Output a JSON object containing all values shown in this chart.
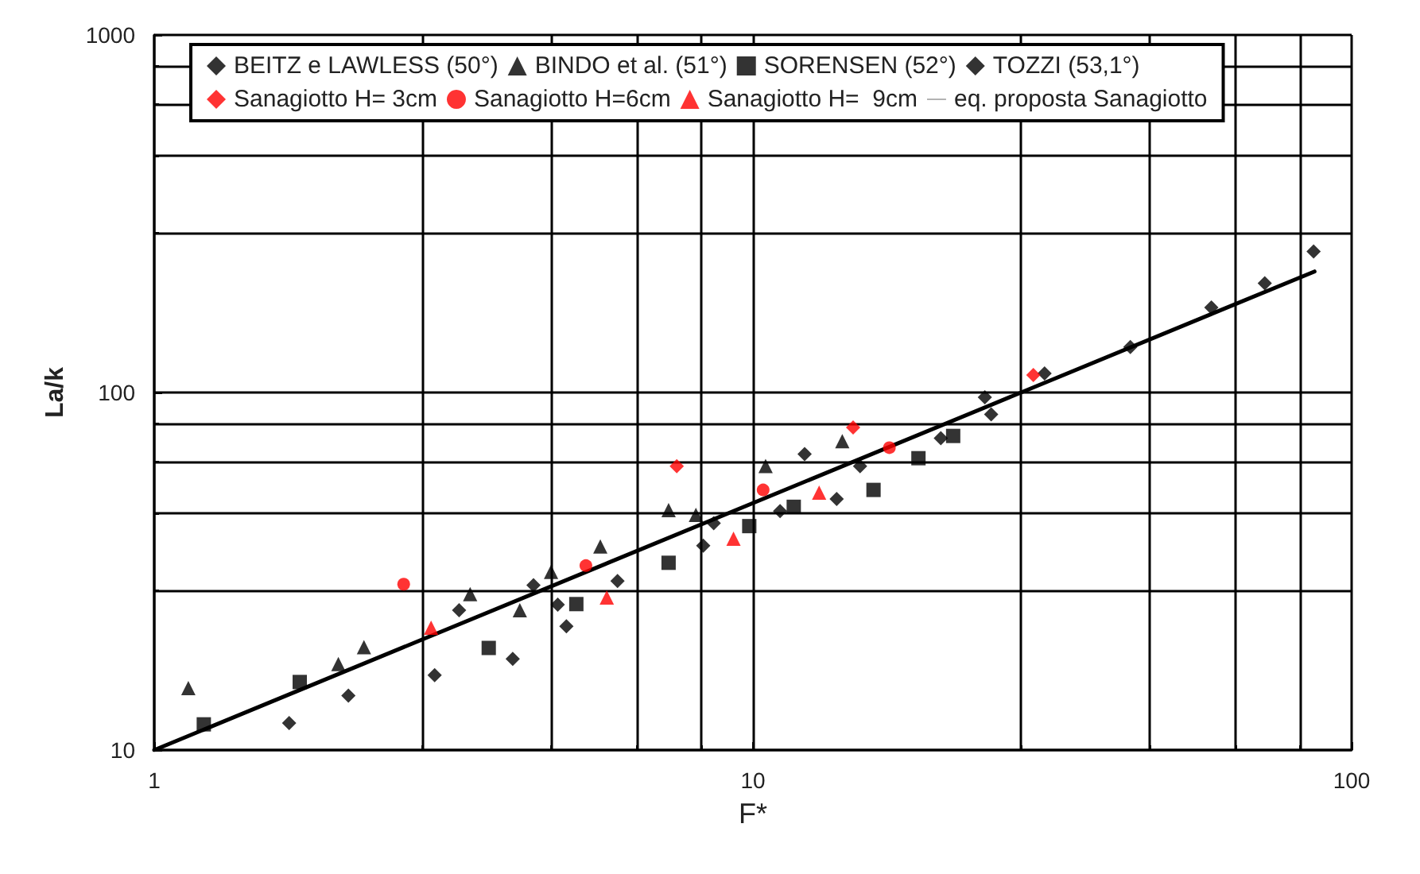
{
  "chart_data": {
    "type": "scatter",
    "xlabel": "F*",
    "ylabel": "La/k",
    "log": "xy",
    "xlim": [
      1,
      100
    ],
    "ylim": [
      10,
      1000
    ],
    "xticks": [
      1,
      10,
      100
    ],
    "yticks": [
      10,
      100,
      1000
    ],
    "grid": true,
    "legend": "top",
    "series": [
      {
        "name": "BEITZ e LAWLESS (50°)",
        "color": "#000000",
        "marker": "diamond",
        "x": [
          3.23,
          12.2
        ],
        "values": [
          24.6,
          67.3
        ]
      },
      {
        "name": "BINDO et al. (51°)",
        "color": "#000000",
        "marker": "triangle",
        "x": [
          1.14,
          2.03,
          2.24,
          3.37,
          4.08,
          4.6,
          5.56,
          7.23,
          8.03,
          10.5,
          14.1
        ],
        "values": [
          14.9,
          17.4,
          19.4,
          27.3,
          24.6,
          31.5,
          37.1,
          46.9,
          45.5,
          62.3,
          73.1
        ]
      },
      {
        "name": "SORENSEN (52°)",
        "color": "#000000",
        "marker": "square",
        "x": [
          1.21,
          1.75,
          3.62,
          5.07,
          7.23,
          9.86,
          11.7,
          15.9,
          18.9,
          21.6
        ],
        "values": [
          11.8,
          15.5,
          19.3,
          25.6,
          33.4,
          42.3,
          47.9,
          53.4,
          65.5,
          75.6
        ]
      },
      {
        "name": "TOZZI (53,1°)",
        "color": "#000000",
        "marker": "diamond",
        "x": [
          1.68,
          2.11,
          2.94,
          3.97,
          4.72,
          4.88,
          4.3,
          5.94,
          8.26,
          8.6,
          11.1,
          13.8,
          15.1,
          20.6,
          25,
          24.4,
          30.7,
          42.7,
          58.3,
          71.6,
          86.4
        ],
        "values": [
          11.9,
          14.2,
          16.2,
          18,
          25.5,
          22.2,
          28.9,
          29.7,
          37.3,
          43.1,
          46.6,
          50.4,
          62.2,
          74.5,
          86.9,
          97,
          113,
          134,
          173,
          202,
          248
        ]
      },
      {
        "name": "Sanagiotto H= 3cm",
        "color": "#ff0000",
        "marker": "diamond",
        "x": [
          7.46,
          14.7,
          29.4
        ],
        "values": [
          62.2,
          79.8,
          111.9
        ]
      },
      {
        "name": "Sanagiotto H=6cm",
        "color": "#ff0000",
        "marker": "circle",
        "x": [
          2.61,
          5.26,
          10.4,
          16.9
        ],
        "values": [
          29.1,
          32.8,
          53.4,
          70.1
        ]
      },
      {
        "name": "Sanagiotto H=  9cm",
        "color": "#ff0000",
        "marker": "triangle",
        "x": [
          2.9,
          5.7,
          9.28,
          12.9
        ],
        "values": [
          22,
          26.7,
          39,
          52.5
        ]
      },
      {
        "name": "eq. proposta Sanagiotto",
        "type": "line",
        "color": "#000000",
        "marker": "none",
        "line_style": "solid",
        "x": [
          1,
          86.7
        ],
        "values": [
          10,
          218
        ]
      }
    ]
  }
}
